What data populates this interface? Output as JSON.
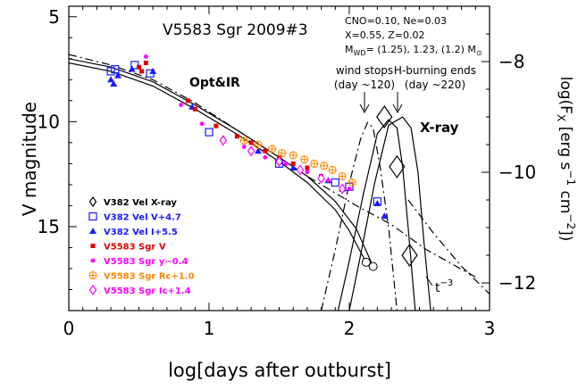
{
  "chart_data": {
    "type": "scatter",
    "title": "V5583 Sgr 2009#3",
    "params": {
      "line1": "CNO=0.10, Ne=0.03",
      "line2": "X=0.55, Z=0.02",
      "line3_pre": "M",
      "line3_sub": "WD",
      "line3_post": "= (1.25), 1.23, (1.2) M",
      "line3_sun": "⊙"
    },
    "xlabel": "log[days after outburst]",
    "ylabel": "V magnitude",
    "y2label": "log(F_X [erg s^-1 cm^-2])",
    "xlim": [
      0,
      3
    ],
    "ylim": [
      4.5,
      19
    ],
    "y2lim": [
      -7,
      -12.5
    ],
    "x_ticks": [
      "0",
      "1",
      "2",
      "3"
    ],
    "y_ticks": [
      "5",
      "10",
      "15"
    ],
    "y2_ticks": [
      "−8",
      "−10",
      "−12"
    ],
    "annotations": {
      "optir": "Opt&IR",
      "xray": "X-ray",
      "wind_title": "wind stops",
      "wind_sub": "(day ~120)",
      "hburn_title": "H-burning ends",
      "hburn_sub": "(day ~220)",
      "powerlaw": "t",
      "powerlaw_exp": "−3"
    },
    "legend": [
      {
        "label": "V382 Vel X-ray",
        "color": "#000000",
        "marker": "diamond-open"
      },
      {
        "label": "V382 Vel V+4.7",
        "color": "#1a1aff",
        "marker": "square-open"
      },
      {
        "label": "V382 Vel I+5.5",
        "color": "#1a1aff",
        "marker": "triangle"
      },
      {
        "label": "V5583 Sgr V",
        "color": "#dd0000",
        "marker": "square-small"
      },
      {
        "label": "V5583 Sgr y−0.4",
        "color": "#ff00ff",
        "marker": "dot"
      },
      {
        "label": "V5583 Sgr Rc+1.0",
        "color": "#ff8800",
        "marker": "circle-plus"
      },
      {
        "label": "V5583 Sgr Ic+1.4",
        "color": "#ff00ff",
        "marker": "diamond-open"
      }
    ],
    "series": [
      {
        "name": "V382 Vel X-ray",
        "color": "#000000",
        "marker": "diamond-open",
        "axis": "y2",
        "x": [
          2.25,
          2.34,
          2.43
        ],
        "y": [
          -9.0,
          -9.9,
          -11.5
        ]
      },
      {
        "name": "V382 Vel V+4.7",
        "color": "#1a1aff",
        "marker": "square-open",
        "axis": "y",
        "x": [
          0.3,
          0.33,
          0.47,
          0.58,
          1.0,
          1.5,
          1.9,
          2.0,
          2.2
        ],
        "y": [
          7.6,
          7.5,
          7.3,
          7.7,
          10.5,
          12.0,
          12.9,
          13.1,
          13.8
        ]
      },
      {
        "name": "V382 Vel I+5.5",
        "color": "#1a1aff",
        "marker": "triangle",
        "axis": "y",
        "x": [
          0.3,
          0.32,
          0.35,
          0.45,
          0.6,
          0.88,
          1.1,
          1.35,
          1.6,
          1.85,
          1.95,
          2.2,
          2.25
        ],
        "y": [
          8.0,
          8.2,
          7.8,
          7.5,
          7.6,
          9.3,
          10.8,
          11.4,
          12.2,
          12.8,
          13.2,
          13.9,
          14.5
        ]
      },
      {
        "name": "V5583 Sgr V",
        "color": "#dd0000",
        "marker": "square-small",
        "axis": "y",
        "x": [
          0.5,
          0.52,
          0.55,
          0.85,
          0.9,
          1.05,
          1.2,
          1.3,
          1.4,
          1.5,
          1.6,
          1.7,
          1.8
        ],
        "y": [
          7.4,
          7.6,
          7.2,
          9.0,
          9.4,
          10.2,
          10.7,
          11.0,
          11.4,
          11.7,
          12.0,
          12.2,
          12.6
        ]
      },
      {
        "name": "V5583 Sgr y−0.4",
        "color": "#ff00ff",
        "marker": "dot",
        "axis": "y",
        "x": [
          0.55,
          0.8,
          0.95,
          1.1,
          1.25,
          1.4,
          1.55,
          1.7,
          1.85,
          2.0
        ],
        "y": [
          6.9,
          9.2,
          10.1,
          10.8,
          11.2,
          11.7,
          12.0,
          12.4,
          12.8,
          13.2
        ]
      },
      {
        "name": "V5583 Sgr Rc+1.0",
        "color": "#ff8800",
        "marker": "circle-plus",
        "axis": "y",
        "x": [
          1.25,
          1.35,
          1.45,
          1.52,
          1.6,
          1.68,
          1.75,
          1.82,
          1.88,
          1.95,
          2.02
        ],
        "y": [
          10.9,
          11.1,
          11.3,
          11.5,
          11.6,
          11.8,
          12.0,
          12.1,
          12.3,
          12.6,
          12.9
        ]
      },
      {
        "name": "V5583 Sgr Ic+1.4",
        "color": "#ff00ff",
        "marker": "diamond-open",
        "axis": "y",
        "x": [
          1.1,
          1.3,
          1.5,
          1.65,
          1.8,
          1.95
        ],
        "y": [
          10.9,
          11.4,
          11.9,
          12.3,
          12.7,
          13.2
        ]
      }
    ],
    "model_curves": {
      "optical": [
        {
          "style": "solid",
          "x": [
            0,
            0.3,
            0.6,
            0.9,
            1.2,
            1.5,
            1.7,
            1.9,
            2.0,
            2.12
          ],
          "y": [
            7.2,
            7.6,
            8.3,
            9.4,
            10.6,
            11.9,
            12.9,
            14.2,
            15.2,
            16.7
          ]
        },
        {
          "style": "solid",
          "x": [
            0,
            0.3,
            0.6,
            0.9,
            1.2,
            1.5,
            1.7,
            1.9,
            2.05,
            2.17
          ],
          "y": [
            7.0,
            7.4,
            8.1,
            9.2,
            10.4,
            11.7,
            12.6,
            13.8,
            15.1,
            16.9
          ]
        },
        {
          "style": "dashdot",
          "x": [
            0,
            0.3,
            0.6,
            0.9,
            1.2,
            1.5,
            1.7,
            1.9,
            2.05,
            2.3,
            2.55,
            2.9
          ],
          "y": [
            6.8,
            7.3,
            8.0,
            9.1,
            10.4,
            11.7,
            12.6,
            13.4,
            14.0,
            14.9,
            16.1,
            17.4
          ]
        }
      ],
      "xray": [
        {
          "style": "solid",
          "x": [
            1.92,
            2.0,
            2.1,
            2.2,
            2.28,
            2.34,
            2.38,
            2.42,
            2.47
          ],
          "y": [
            -12.5,
            -11.6,
            -10.4,
            -9.3,
            -9.05,
            -9.2,
            -9.9,
            -11.0,
            -12.5
          ]
        },
        {
          "style": "solid",
          "x": [
            2.0,
            2.08,
            2.18,
            2.28,
            2.38,
            2.44,
            2.49,
            2.53,
            2.58
          ],
          "y": [
            -12.5,
            -11.5,
            -10.2,
            -9.15,
            -9.0,
            -9.2,
            -10.0,
            -11.2,
            -12.5
          ]
        },
        {
          "style": "dashdot",
          "x": [
            1.8,
            1.9,
            2.0,
            2.08,
            2.13,
            2.17,
            2.22,
            2.28,
            2.34
          ],
          "y": [
            -12.5,
            -11.4,
            -10.2,
            -9.4,
            -9.1,
            -9.2,
            -9.9,
            -11.0,
            -12.5
          ]
        }
      ],
      "tail": {
        "style": "dashdot",
        "x": [
          2.42,
          2.6,
          2.8,
          3.0
        ],
        "y": [
          -10.5,
          -11.1,
          -11.7,
          -12.2
        ]
      }
    }
  }
}
